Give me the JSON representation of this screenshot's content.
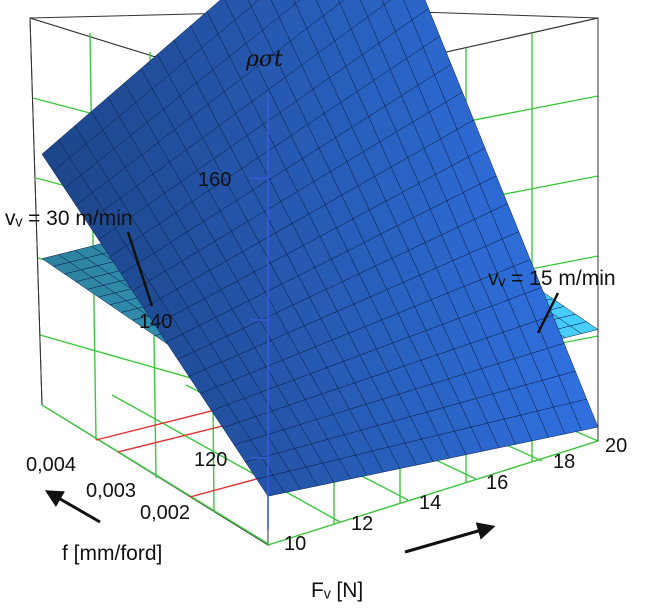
{
  "chart_data": {
    "type": "surface",
    "z_label": "ρσt",
    "x_label": "Fᵥ [N]",
    "y_label": "f [mm/ford]",
    "x_ticks": [
      "10",
      "12",
      "14",
      "16",
      "18",
      "20"
    ],
    "y_ticks": [
      "0,002",
      "0,003",
      "0,004"
    ],
    "z_ticks": [
      "120",
      "140",
      "160"
    ],
    "xlim": [
      10,
      20
    ],
    "ylim": [
      0.0015,
      0.0045
    ],
    "zlim": [
      110,
      175
    ],
    "grid": true,
    "series": [
      {
        "name": "vᵥ = 30 m/min",
        "color": "#2a63c4",
        "corners": {
          "F10_fmin": 117,
          "F20_fmin": 112,
          "F10_fmax": 146,
          "F20_fmax": 172
        }
      },
      {
        "name": "vᵥ = 15 m/min",
        "color": "#3fb6e0",
        "corners": {
          "F10_fmin": 129,
          "F20_fmin": 126,
          "F10_fmax": 131,
          "F20_fmax": 128
        }
      }
    ],
    "annotations": [
      "vᵥ = 30 m/min",
      "vᵥ = 15 m/min"
    ]
  }
}
